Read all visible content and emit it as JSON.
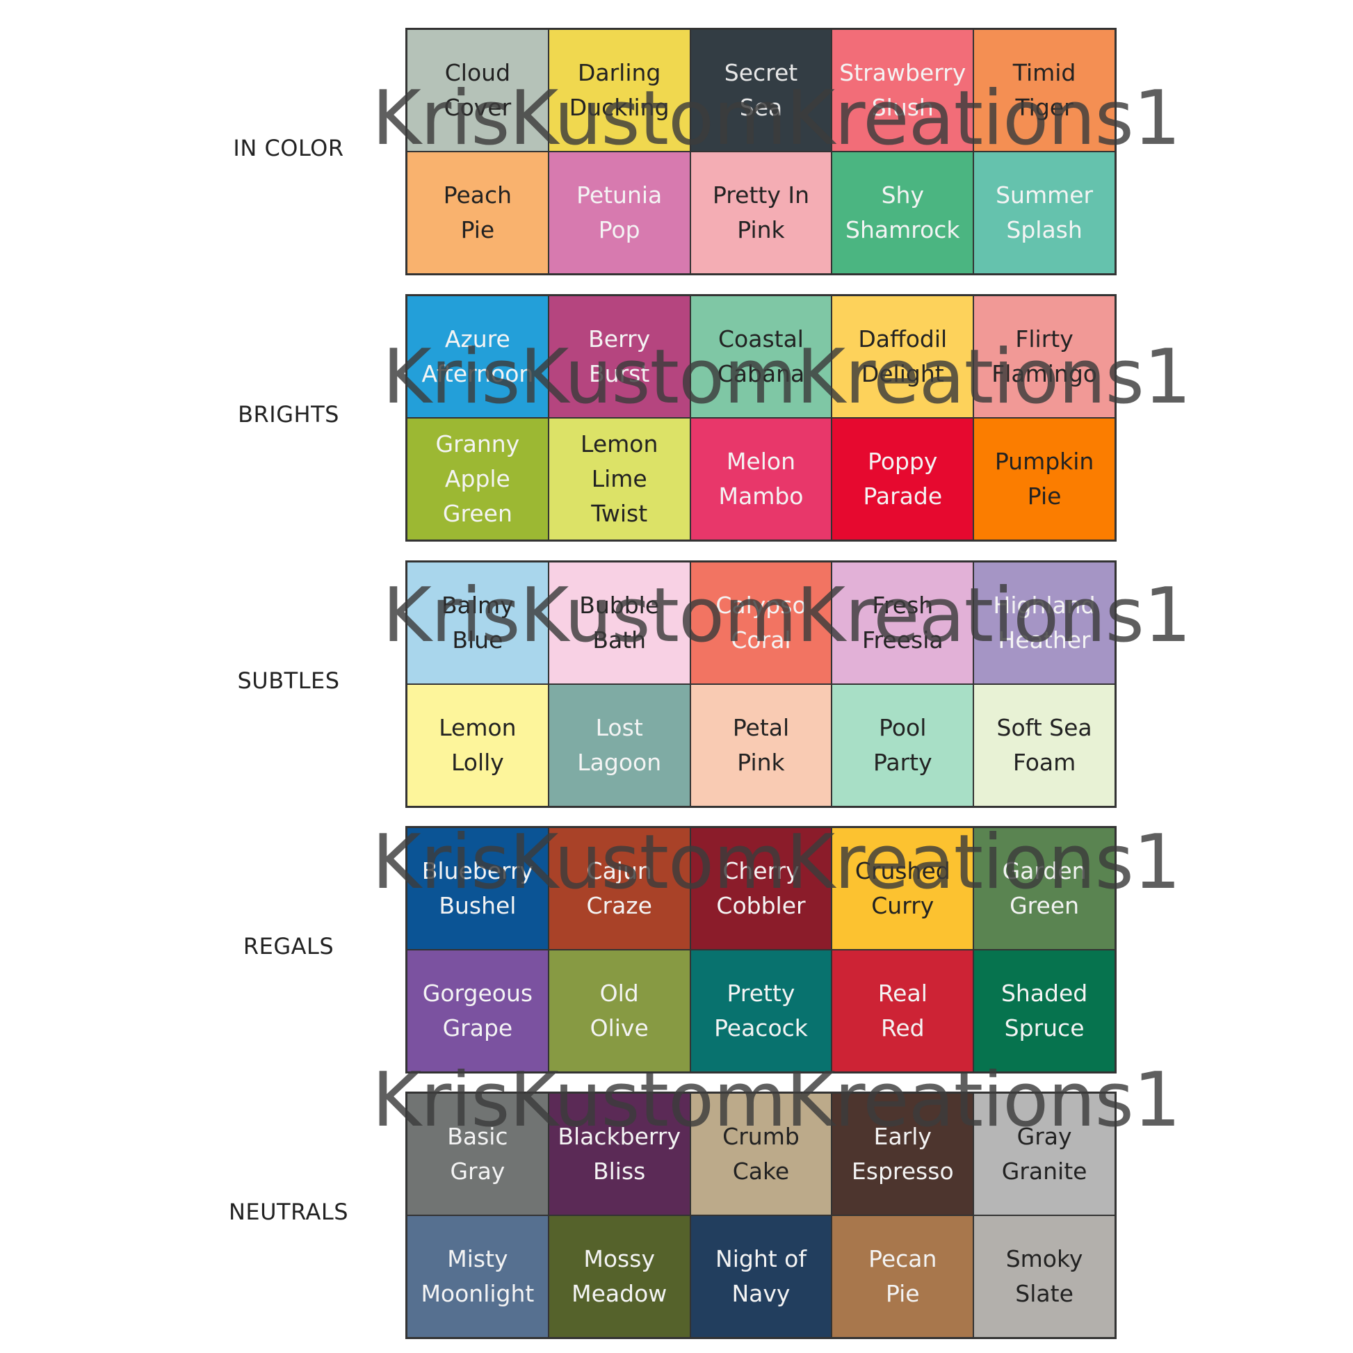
{
  "groups": [
    {
      "label": "IN COLOR",
      "cells": [
        {
          "text": "Cloud\nCover",
          "bg": "#b5c2b8",
          "fg": "#222222"
        },
        {
          "text": "Darling\nDuckling",
          "bg": "#f0d84f",
          "fg": "#222222"
        },
        {
          "text": "Secret\nSea",
          "bg": "#333d44",
          "fg": "#e8e8e8"
        },
        {
          "text": "Strawberry\nSlush",
          "bg": "#f26d78",
          "fg": "#f4f4f4"
        },
        {
          "text": "Timid\nTiger",
          "bg": "#f48f53",
          "fg": "#222222"
        },
        {
          "text": "Peach\nPie",
          "bg": "#f9b26e",
          "fg": "#222222"
        },
        {
          "text": "Petunia\nPop",
          "bg": "#d77aaf",
          "fg": "#f4f4f4"
        },
        {
          "text": "Pretty In\nPink",
          "bg": "#f4adb4",
          "fg": "#222222"
        },
        {
          "text": "Shy\nShamrock",
          "bg": "#4bb581",
          "fg": "#f4f4f4"
        },
        {
          "text": "Summer\nSplash",
          "bg": "#65c2ad",
          "fg": "#f4f4f4"
        }
      ]
    },
    {
      "label": "BRIGHTS",
      "cells": [
        {
          "text": "Azure\nAfternoon",
          "bg": "#239fd9",
          "fg": "#f4f4f4"
        },
        {
          "text": "Berry\nBurst",
          "bg": "#b5457f",
          "fg": "#f4f4f4"
        },
        {
          "text": "Coastal\nCabana",
          "bg": "#7fc7a5",
          "fg": "#222222"
        },
        {
          "text": "Daffodil\nDelight",
          "bg": "#fdd25b",
          "fg": "#222222"
        },
        {
          "text": "Flirty\nFlamingo",
          "bg": "#f19996",
          "fg": "#222222"
        },
        {
          "text": "Granny\nApple\nGreen",
          "bg": "#9cb833",
          "fg": "#f4f4f4"
        },
        {
          "text": "Lemon\nLime\nTwist",
          "bg": "#dce267",
          "fg": "#222222"
        },
        {
          "text": "Melon\nMambo",
          "bg": "#e8376a",
          "fg": "#f4f4f4"
        },
        {
          "text": "Poppy\nParade",
          "bg": "#e6092f",
          "fg": "#f4f4f4"
        },
        {
          "text": "Pumpkin\nPie",
          "bg": "#fb7d00",
          "fg": "#222222"
        }
      ]
    },
    {
      "label": "SUBTLES",
      "cells": [
        {
          "text": "Balmy\nBlue",
          "bg": "#a9d6ec",
          "fg": "#222222"
        },
        {
          "text": "Bubble\nBath",
          "bg": "#f8d1e4",
          "fg": "#222222"
        },
        {
          "text": "Calypso\nCoral",
          "bg": "#f27462",
          "fg": "#f4f4f4"
        },
        {
          "text": "Fresh\nFreesia",
          "bg": "#e2b1d7",
          "fg": "#222222"
        },
        {
          "text": "Highland\nHeather",
          "bg": "#a595c5",
          "fg": "#f4f4f4"
        },
        {
          "text": "Lemon\nLolly",
          "bg": "#fdf59b",
          "fg": "#222222"
        },
        {
          "text": "Lost\nLagoon",
          "bg": "#7faba4",
          "fg": "#f4f4f4"
        },
        {
          "text": "Petal\nPink",
          "bg": "#f9cbb3",
          "fg": "#222222"
        },
        {
          "text": "Pool\nParty",
          "bg": "#a8dfc6",
          "fg": "#222222"
        },
        {
          "text": "Soft Sea\nFoam",
          "bg": "#e8f2d5",
          "fg": "#222222"
        }
      ]
    },
    {
      "label": "REGALS",
      "cells": [
        {
          "text": "Blueberry\nBushel",
          "bg": "#0b5495",
          "fg": "#f4f4f4"
        },
        {
          "text": "Cajun\nCraze",
          "bg": "#a94228",
          "fg": "#f4f4f4"
        },
        {
          "text": "Cherry\nCobbler",
          "bg": "#8b1c2a",
          "fg": "#f4f4f4"
        },
        {
          "text": "Crushed\nCurry",
          "bg": "#fcc230",
          "fg": "#222222"
        },
        {
          "text": "Garden\nGreen",
          "bg": "#5a8451",
          "fg": "#f4f4f4"
        },
        {
          "text": "Gorgeous\nGrape",
          "bg": "#7b52a0",
          "fg": "#f4f4f4"
        },
        {
          "text": "Old\nOlive",
          "bg": "#879a43",
          "fg": "#f4f4f4"
        },
        {
          "text": "Pretty\nPeacock",
          "bg": "#08726e",
          "fg": "#f4f4f4"
        },
        {
          "text": "Real\nRed",
          "bg": "#cd2335",
          "fg": "#f4f4f4"
        },
        {
          "text": "Shaded\nSpruce",
          "bg": "#06734e",
          "fg": "#f4f4f4"
        }
      ]
    },
    {
      "label": "NEUTRALS",
      "cells": [
        {
          "text": "Basic\nGray",
          "bg": "#717473",
          "fg": "#f4f4f4"
        },
        {
          "text": "Blackberry\nBliss",
          "bg": "#5b2a56",
          "fg": "#f4f4f4"
        },
        {
          "text": "Crumb\nCake",
          "bg": "#bcaa8a",
          "fg": "#222222"
        },
        {
          "text": "Early\nEspresso",
          "bg": "#4d352e",
          "fg": "#f4f4f4"
        },
        {
          "text": "Gray\nGranite",
          "bg": "#b6b6b6",
          "fg": "#222222"
        },
        {
          "text": "Misty\nMoonlight",
          "bg": "#567090",
          "fg": "#f4f4f4"
        },
        {
          "text": "Mossy\nMeadow",
          "bg": "#55622b",
          "fg": "#f4f4f4"
        },
        {
          "text": "Night of\nNavy",
          "bg": "#223e5e",
          "fg": "#f4f4f4"
        },
        {
          "text": "Pecan\nPie",
          "bg": "#a8774c",
          "fg": "#f4f4f4"
        },
        {
          "text": "Smoky\nSlate",
          "bg": "#b3b0ac",
          "fg": "#222222"
        }
      ]
    }
  ],
  "watermark": "KrisKustomKreations1"
}
